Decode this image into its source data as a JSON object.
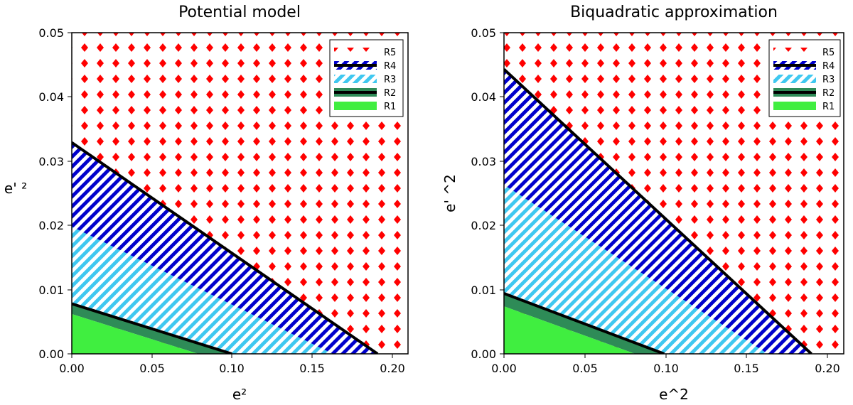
{
  "chart_data": [
    {
      "type": "area",
      "title": "Potential model",
      "xlabel": "e²",
      "ylabel": "e' ²",
      "xlim": [
        0.0,
        0.21
      ],
      "ylim": [
        0.0,
        0.05
      ],
      "xticks": [
        "0.00",
        "0.05",
        "0.10",
        "0.15",
        "0.20"
      ],
      "yticks": [
        "0.00",
        "0.01",
        "0.02",
        "0.03",
        "0.04",
        "0.05"
      ],
      "boundaries": [
        {
          "name": "R1 upper",
          "y0": 0.0062,
          "x0": 0.079
        },
        {
          "name": "R2",
          "y0": 0.0078,
          "x0": 0.1
        },
        {
          "name": "R3 upper",
          "y0": 0.0198,
          "x0": 0.163
        },
        {
          "name": "R4",
          "y0": 0.0329,
          "x0": 0.191
        }
      ],
      "legend": {
        "position": "top-right",
        "entries": [
          "R5",
          "R4",
          "R3",
          "R2",
          "R1"
        ]
      }
    },
    {
      "type": "area",
      "title": "Biquadratic approximation",
      "xlabel": "e^2",
      "ylabel": "e' ^2",
      "xlim": [
        0.0,
        0.21
      ],
      "ylim": [
        0.0,
        0.05
      ],
      "xticks": [
        "0.00",
        "0.05",
        "0.10",
        "0.15",
        "0.20"
      ],
      "yticks": [
        "0.00",
        "0.01",
        "0.02",
        "0.03",
        "0.04",
        "0.05"
      ],
      "boundaries": [
        {
          "name": "R1 upper",
          "y0": 0.0074,
          "x0": 0.081
        },
        {
          "name": "R2",
          "y0": 0.0094,
          "x0": 0.099
        },
        {
          "name": "R3 upper",
          "y0": 0.0263,
          "x0": 0.163
        },
        {
          "name": "R4",
          "y0": 0.0443,
          "x0": 0.19
        }
      ],
      "legend": {
        "position": "top-right",
        "entries": [
          "R5",
          "R4",
          "R3",
          "R2",
          "R1"
        ]
      }
    }
  ],
  "colors": {
    "r5": "#ff0000",
    "r4": "#0000cc",
    "r3": "#3fc8f0",
    "r2_line": "#000000",
    "r2_fill": "#2e8b57",
    "r1": "#40ee40"
  }
}
